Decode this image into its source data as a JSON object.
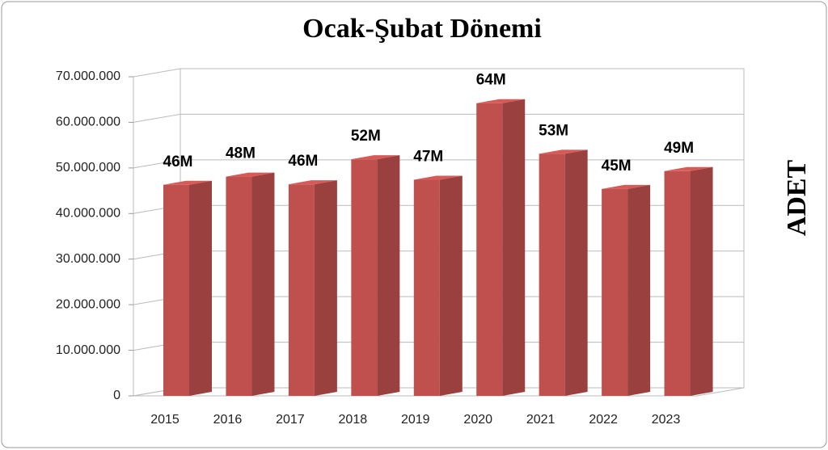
{
  "chart_data": {
    "type": "bar3d",
    "title": "Ocak-Şubat Dönemi",
    "y_label": "ADET",
    "categories": [
      "2015",
      "2016",
      "2017",
      "2018",
      "2019",
      "2020",
      "2021",
      "2022",
      "2023"
    ],
    "values": [
      46300000,
      48100000,
      46400000,
      51900000,
      47400000,
      64200000,
      53100000,
      45400000,
      49300000
    ],
    "value_labels": [
      "46M",
      "48M",
      "46M",
      "52M",
      "47M",
      "64M",
      "53M",
      "45M",
      "49M"
    ],
    "color": "#c0504d",
    "ylim": [
      0,
      70000000
    ],
    "yticks": [
      0,
      {
        "value": 10000000,
        "label": "10.000.000"
      },
      {
        "value": 20000000,
        "label": "20.000.000"
      },
      {
        "value": 30000000,
        "label": "30.000.000"
      },
      {
        "value": 40000000,
        "label": "40.000.000"
      },
      {
        "value": 50000000,
        "label": "50.000.000"
      },
      {
        "value": 60000000,
        "label": "60.000.000"
      },
      {
        "value": 70000000,
        "label": "70.000.000"
      }
    ],
    "grid": true
  }
}
